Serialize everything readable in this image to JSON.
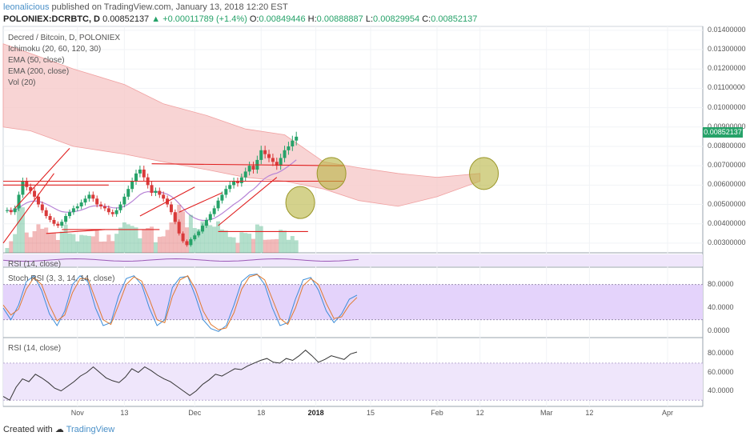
{
  "header": {
    "author": "leonalicious",
    "published_text": "published on TradingView.com, January 13, 2018 12:20 EST",
    "symbol": "POLONIEX:DCRBTC, D",
    "last": "0.00852137",
    "change": "▲ +0.00011789 (+1.4%)",
    "open_label": "O:",
    "open": "0.00849446",
    "high_label": "H:",
    "high": "0.00888887",
    "low_label": "L:",
    "low": "0.00829954",
    "close_label": "C:",
    "close": "0.00852137"
  },
  "legend": [
    "Decred / Bitcoin, D, POLONIEX",
    "Ichimoku (20, 60, 120, 30)",
    "EMA (50, close)",
    "EMA (200, close)",
    "Vol (20)"
  ],
  "price_tag": "0.00852137",
  "footer": {
    "created_with": "Created with",
    "brand": "TradingView"
  },
  "colors": {
    "up": "#26a269",
    "down": "#d93a3a",
    "cloud_fill": "#f6c9c9",
    "rsi_fill": "#efe6fb",
    "stoch_fill": "#e4d3fb",
    "ellipse": "#b8b440",
    "trendline": "#e02020",
    "kumo_edge": "#f0a0a0"
  },
  "chart_data": [
    {
      "type": "candlestick",
      "title": "Decred / Bitcoin, D, POLONIEX",
      "ylim": [
        0.0025,
        0.0142
      ],
      "y_ticks": [
        "0.01400000",
        "0.01300000",
        "0.01200000",
        "0.01100000",
        "0.01000000",
        "0.00900000",
        "0.00800000",
        "0.00700000",
        "0.00600000",
        "0.00500000",
        "0.00400000",
        "0.00300000"
      ],
      "x_ticks": [
        "Nov",
        "13",
        "Dec",
        "18",
        "2018",
        "15",
        "Feb",
        "12",
        "Mar",
        "12",
        "Apr"
      ],
      "x_range": [
        "2017-10-13",
        "2018-04-10"
      ],
      "series_daily_close": [
        0.0047,
        0.0046,
        0.0048,
        0.0055,
        0.0062,
        0.0059,
        0.0057,
        0.0054,
        0.005,
        0.0047,
        0.0044,
        0.0042,
        0.004,
        0.0039,
        0.0041,
        0.0044,
        0.0046,
        0.0048,
        0.0049,
        0.0051,
        0.0053,
        0.0055,
        0.0053,
        0.005,
        0.0049,
        0.0048,
        0.0046,
        0.0045,
        0.0047,
        0.005,
        0.0054,
        0.0058,
        0.0062,
        0.0066,
        0.0068,
        0.0064,
        0.006,
        0.0056,
        0.0057,
        0.0055,
        0.0053,
        0.005,
        0.0046,
        0.0041,
        0.0035,
        0.0031,
        0.0029,
        0.0032,
        0.0034,
        0.0036,
        0.0039,
        0.0042,
        0.0045,
        0.0048,
        0.0052,
        0.0055,
        0.0058,
        0.006,
        0.0062,
        0.0061,
        0.0064,
        0.0067,
        0.007,
        0.0068,
        0.0073,
        0.0078,
        0.0076,
        0.0074,
        0.0072,
        0.007,
        0.0074,
        0.0078,
        0.008,
        0.0083,
        0.0085
      ],
      "last": 0.00852137,
      "annotations": [
        {
          "type": "ellipse",
          "date": "2018-01-05",
          "price": 0.0066
        },
        {
          "type": "ellipse",
          "date": "2017-12-28",
          "price": 0.0051
        },
        {
          "type": "ellipse",
          "date": "2018-02-13",
          "price": 0.0066
        }
      ]
    },
    {
      "type": "line",
      "title": "Stoch RSI (3, 3, 14, 14, close)",
      "ylim": [
        -5,
        100
      ],
      "y_ticks": [
        "80.0000",
        "40.0000",
        "0.0000"
      ],
      "band": [
        20,
        80
      ],
      "series": [
        {
          "values": [
            40,
            20,
            45,
            85,
            95,
            70,
            30,
            10,
            35,
            80,
            95,
            85,
            40,
            10,
            15,
            60,
            90,
            95,
            80,
            40,
            10,
            20,
            75,
            92,
            94,
            60,
            20,
            5,
            0,
            10,
            45,
            85,
            96,
            98,
            80,
            40,
            10,
            15,
            55,
            88,
            92,
            70,
            35,
            15,
            30,
            55,
            62
          ]
        },
        {
          "values": [
            45,
            28,
            38,
            72,
            92,
            80,
            45,
            18,
            28,
            66,
            90,
            90,
            55,
            20,
            12,
            45,
            80,
            93,
            86,
            55,
            20,
            15,
            60,
            88,
            95,
            72,
            35,
            12,
            3,
            6,
            32,
            72,
            93,
            97,
            88,
            55,
            22,
            12,
            40,
            78,
            90,
            80,
            48,
            22,
            25,
            45,
            58
          ]
        }
      ]
    },
    {
      "type": "line",
      "title": "RSI (14, close)",
      "ylim": [
        25,
        95
      ],
      "y_ticks": [
        "80.0000",
        "60.0000",
        "40.0000"
      ],
      "band": [
        30,
        70
      ],
      "values": [
        34,
        30,
        44,
        53,
        50,
        58,
        54,
        49,
        43,
        40,
        45,
        50,
        56,
        60,
        66,
        60,
        54,
        51,
        49,
        55,
        64,
        60,
        66,
        62,
        57,
        53,
        50,
        45,
        40,
        35,
        40,
        47,
        52,
        58,
        56,
        60,
        64,
        63,
        67,
        70,
        73,
        75,
        71,
        70,
        75,
        73,
        78,
        84,
        78,
        71,
        74,
        78,
        76,
        74,
        80,
        82
      ]
    },
    {
      "type": "line",
      "title": "RSI (14, close)",
      "ylim": [
        0,
        100
      ],
      "y_ticks": [],
      "values": [
        50,
        50,
        50,
        50,
        50,
        50,
        50,
        50,
        50,
        50
      ]
    }
  ]
}
